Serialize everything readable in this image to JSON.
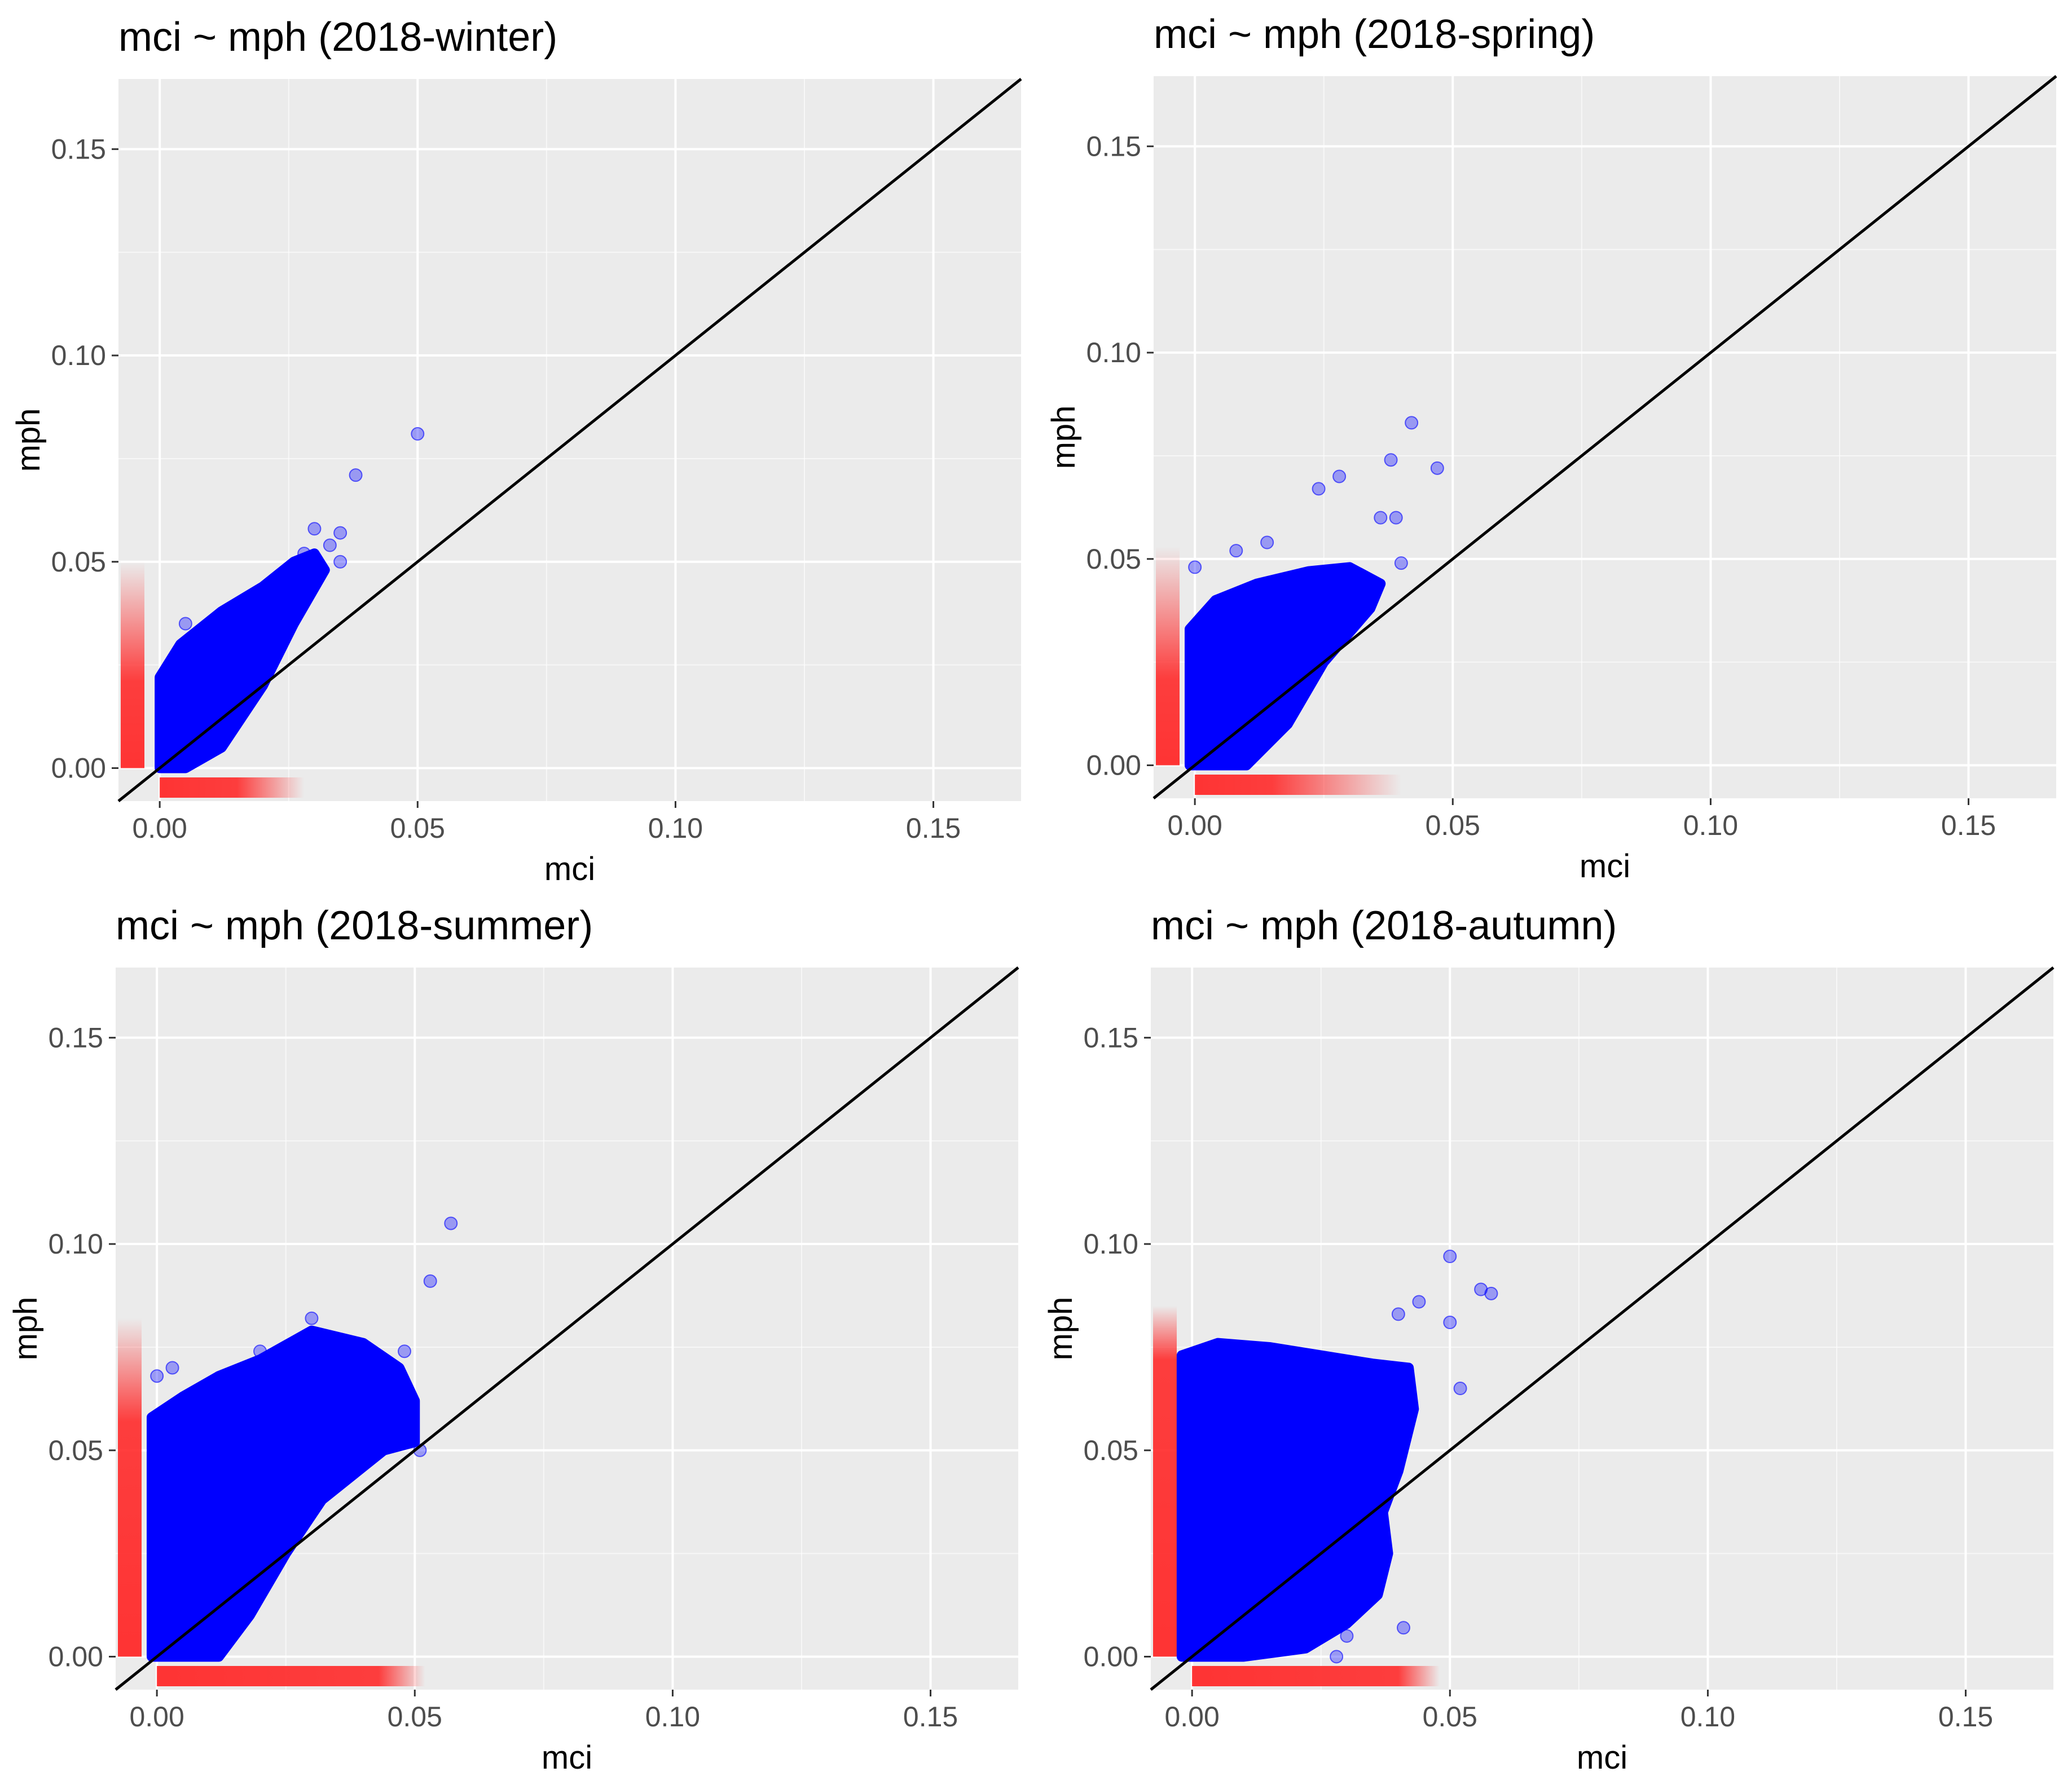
{
  "colors": {
    "panel_bg": "#ebebeb",
    "grid_major": "#ffffff",
    "point": "#0000ff",
    "rug": "#ff2a2a",
    "reference_line": "#000000"
  },
  "chart_data": [
    {
      "type": "scatter",
      "title": "mci ~ mph (2018-winter)",
      "xlabel": "mci",
      "ylabel": "mph",
      "xlim": [
        -0.008,
        0.167
      ],
      "ylim": [
        -0.008,
        0.167
      ],
      "xticks": [
        0.0,
        0.05,
        0.1,
        0.15
      ],
      "yticks": [
        0.0,
        0.05,
        0.1,
        0.15
      ],
      "xtick_labels": [
        "0.00",
        "0.05",
        "0.10",
        "0.15"
      ],
      "ytick_labels": [
        "0.00",
        "0.05",
        "0.10",
        "0.15"
      ],
      "reference_line": "y = x",
      "cloud": [
        [
          0.0,
          0.0
        ],
        [
          0.0,
          0.022
        ],
        [
          0.004,
          0.03
        ],
        [
          0.012,
          0.038
        ],
        [
          0.02,
          0.044
        ],
        [
          0.026,
          0.05
        ],
        [
          0.03,
          0.052
        ],
        [
          0.032,
          0.048
        ],
        [
          0.026,
          0.035
        ],
        [
          0.02,
          0.02
        ],
        [
          0.012,
          0.005
        ],
        [
          0.005,
          0.0
        ]
      ],
      "outliers": [
        [
          0.05,
          0.081
        ],
        [
          0.038,
          0.071
        ],
        [
          0.03,
          0.058
        ],
        [
          0.033,
          0.054
        ],
        [
          0.035,
          0.05
        ],
        [
          0.028,
          0.052
        ],
        [
          0.005,
          0.035
        ],
        [
          0.035,
          0.057
        ]
      ],
      "x_rug_extent": 0.015,
      "x_rug_fade": 0.028,
      "y_rug_extent": 0.021,
      "y_rug_fade": 0.05
    },
    {
      "type": "scatter",
      "title": "mci ~ mph (2018-spring)",
      "xlabel": "mci",
      "ylabel": "mph",
      "xlim": [
        -0.008,
        0.167
      ],
      "ylim": [
        -0.008,
        0.167
      ],
      "xticks": [
        0.0,
        0.05,
        0.1,
        0.15
      ],
      "yticks": [
        0.0,
        0.05,
        0.1,
        0.15
      ],
      "xtick_labels": [
        "0.00",
        "0.05",
        "0.10",
        "0.15"
      ],
      "ytick_labels": [
        "0.00",
        "0.05",
        "0.10",
        "0.15"
      ],
      "reference_line": "y = x",
      "cloud": [
        [
          -0.001,
          0.0
        ],
        [
          -0.001,
          0.033
        ],
        [
          0.004,
          0.04
        ],
        [
          0.012,
          0.044
        ],
        [
          0.022,
          0.047
        ],
        [
          0.03,
          0.048
        ],
        [
          0.036,
          0.044
        ],
        [
          0.034,
          0.038
        ],
        [
          0.025,
          0.025
        ],
        [
          0.018,
          0.01
        ],
        [
          0.01,
          0.0
        ]
      ],
      "outliers": [
        [
          0.042,
          0.083
        ],
        [
          0.047,
          0.072
        ],
        [
          0.038,
          0.074
        ],
        [
          0.028,
          0.07
        ],
        [
          0.024,
          0.067
        ],
        [
          0.036,
          0.06
        ],
        [
          0.04,
          0.049
        ],
        [
          0.0,
          0.048
        ],
        [
          0.008,
          0.052
        ],
        [
          0.014,
          0.054
        ],
        [
          0.039,
          0.06
        ]
      ],
      "x_rug_extent": 0.015,
      "x_rug_fade": 0.04,
      "y_rug_extent": 0.021,
      "y_rug_fade": 0.053
    },
    {
      "type": "scatter",
      "title": "mci ~ mph (2018-summer)",
      "xlabel": "mci",
      "ylabel": "mph",
      "xlim": [
        -0.008,
        0.167
      ],
      "ylim": [
        -0.008,
        0.167
      ],
      "xticks": [
        0.0,
        0.05,
        0.1,
        0.15
      ],
      "yticks": [
        0.0,
        0.05,
        0.1,
        0.15
      ],
      "xtick_labels": [
        "0.00",
        "0.05",
        "0.10",
        "0.15"
      ],
      "ytick_labels": [
        "0.00",
        "0.05",
        "0.10",
        "0.15"
      ],
      "reference_line": "y = x",
      "cloud": [
        [
          -0.001,
          0.0
        ],
        [
          -0.001,
          0.058
        ],
        [
          0.005,
          0.063
        ],
        [
          0.012,
          0.068
        ],
        [
          0.02,
          0.072
        ],
        [
          0.03,
          0.079
        ],
        [
          0.04,
          0.076
        ],
        [
          0.047,
          0.07
        ],
        [
          0.05,
          0.062
        ],
        [
          0.05,
          0.052
        ],
        [
          0.044,
          0.05
        ],
        [
          0.032,
          0.038
        ],
        [
          0.025,
          0.025
        ],
        [
          0.018,
          0.01
        ],
        [
          0.012,
          0.0
        ]
      ],
      "outliers": [
        [
          0.057,
          0.105
        ],
        [
          0.053,
          0.091
        ],
        [
          0.048,
          0.074
        ],
        [
          0.051,
          0.05
        ],
        [
          0.003,
          0.07
        ],
        [
          0.0,
          0.068
        ],
        [
          0.03,
          0.082
        ],
        [
          0.02,
          0.074
        ]
      ],
      "x_rug_extent": 0.043,
      "x_rug_fade": 0.052,
      "y_rug_extent": 0.057,
      "y_rug_fade": 0.082
    },
    {
      "type": "scatter",
      "title": "mci ~ mph (2018-autumn)",
      "xlabel": "mci",
      "ylabel": "mph",
      "xlim": [
        -0.008,
        0.167
      ],
      "ylim": [
        -0.008,
        0.167
      ],
      "xticks": [
        0.0,
        0.05,
        0.1,
        0.15
      ],
      "yticks": [
        0.0,
        0.05,
        0.1,
        0.15
      ],
      "xtick_labels": [
        "0.00",
        "0.05",
        "0.10",
        "0.15"
      ],
      "ytick_labels": [
        "0.00",
        "0.05",
        "0.10",
        "0.15"
      ],
      "reference_line": "y = x",
      "cloud": [
        [
          -0.002,
          0.0
        ],
        [
          -0.002,
          0.073
        ],
        [
          0.005,
          0.076
        ],
        [
          0.015,
          0.075
        ],
        [
          0.025,
          0.073
        ],
        [
          0.035,
          0.071
        ],
        [
          0.042,
          0.07
        ],
        [
          0.043,
          0.06
        ],
        [
          0.04,
          0.045
        ],
        [
          0.037,
          0.035
        ],
        [
          0.038,
          0.025
        ],
        [
          0.036,
          0.015
        ],
        [
          0.03,
          0.008
        ],
        [
          0.022,
          0.002
        ],
        [
          0.01,
          0.0
        ]
      ],
      "outliers": [
        [
          0.05,
          0.097
        ],
        [
          0.056,
          0.089
        ],
        [
          0.058,
          0.088
        ],
        [
          0.05,
          0.081
        ],
        [
          0.044,
          0.086
        ],
        [
          0.04,
          0.083
        ],
        [
          0.052,
          0.065
        ],
        [
          0.03,
          0.005
        ],
        [
          0.028,
          0.0
        ],
        [
          0.041,
          0.007
        ]
      ],
      "x_rug_extent": 0.04,
      "x_rug_fade": 0.048,
      "y_rug_extent": 0.072,
      "y_rug_fade": 0.085
    }
  ]
}
